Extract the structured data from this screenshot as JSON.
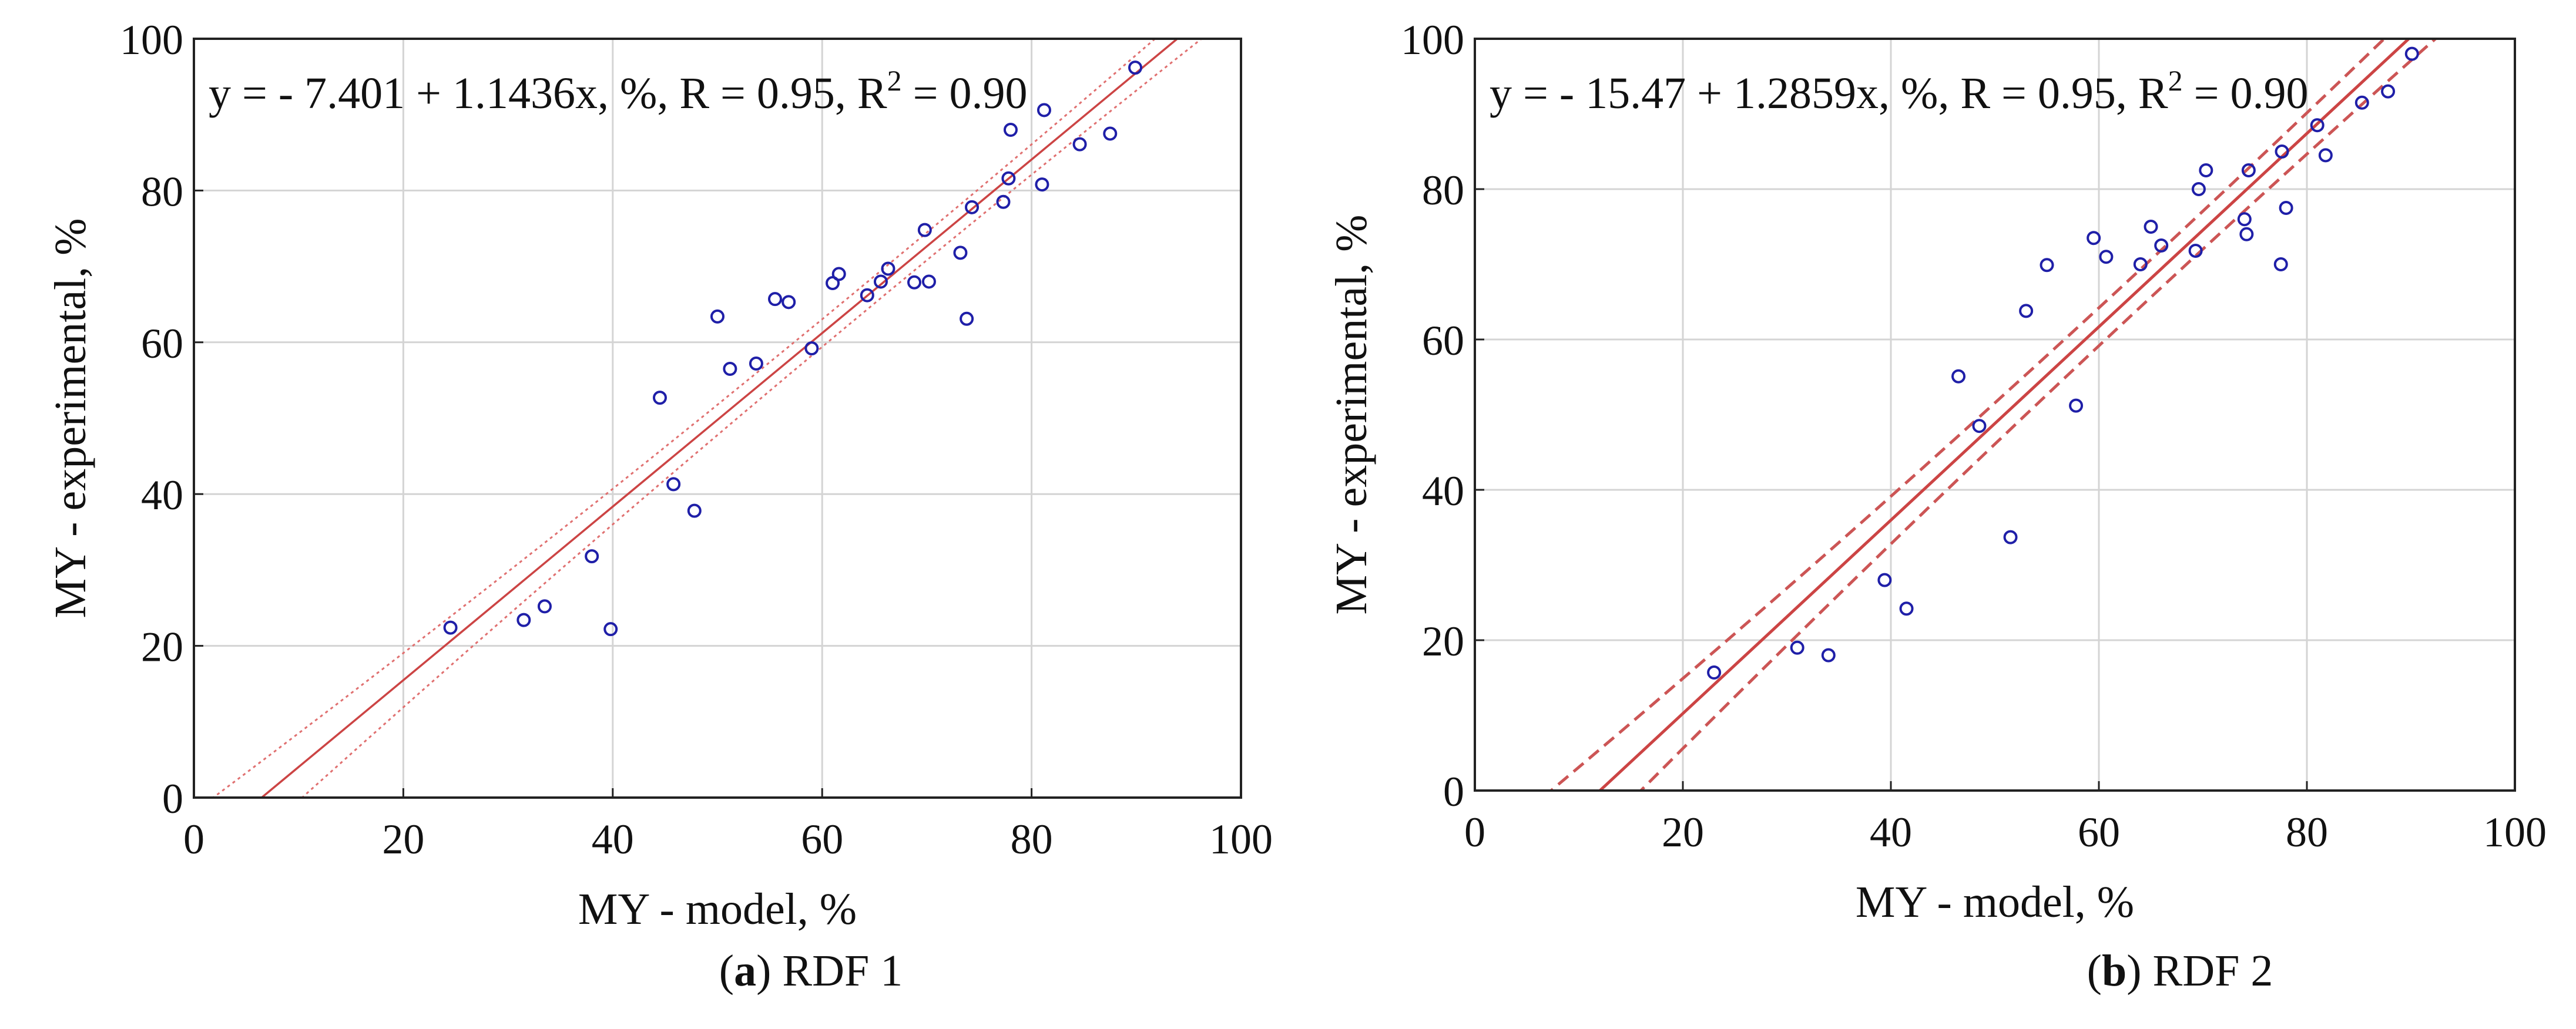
{
  "chart_data": [
    {
      "type": "scatter",
      "panel_label": "a",
      "caption": "RDF 1",
      "equation": "y = - 7.401 + 1.1436x, %, R = 0.95, R",
      "equation_sup": "2",
      "equation_tail": " = 0.90",
      "xlabel": "MY - model, %",
      "ylabel": "MY - experimental, %",
      "xlim": [
        0,
        100
      ],
      "ylim": [
        0,
        100
      ],
      "xticks": [
        0,
        20,
        40,
        60,
        80,
        100
      ],
      "yticks": [
        0,
        20,
        40,
        60,
        80,
        100
      ],
      "grid": true,
      "fit": {
        "intercept": -7.401,
        "slope": 1.1436
      },
      "band_style": "dotted",
      "band_half_width": [
        5.5,
        1.8
      ],
      "points": {
        "x": [
          24.5,
          31.5,
          33.5,
          38,
          39.8,
          44.5,
          45.8,
          47.8,
          50,
          51.2,
          53.7,
          55.5,
          56.8,
          59,
          61,
          61.6,
          64.3,
          65.6,
          66.3,
          68.8,
          69.8,
          70.2,
          73.2,
          73.8,
          74.3,
          77.3,
          77.8,
          78,
          81,
          81.2,
          84.6,
          87.5,
          89.9
        ],
        "y": [
          22.4,
          23.4,
          25.2,
          31.8,
          22.2,
          52.7,
          41.3,
          37.8,
          63.4,
          56.5,
          57.2,
          65.7,
          65.3,
          59.2,
          67.8,
          69,
          66.2,
          68,
          69.7,
          67.9,
          74.8,
          68,
          71.8,
          63.1,
          77.8,
          78.5,
          81.6,
          88,
          80.8,
          90.6,
          86.1,
          87.5,
          96.2
        ]
      },
      "colors": {
        "points": "#1f1fa8",
        "fit": "#cc4444",
        "band": "#e07070",
        "grid": "#d4d4d4"
      }
    },
    {
      "type": "scatter",
      "panel_label": "b",
      "caption": "RDF 2",
      "equation": "y = - 15.47 + 1.2859x, %, R = 0.95, R",
      "equation_sup": "2",
      "equation_tail": " = 0.90",
      "xlabel": "MY - model, %",
      "ylabel": "MY - experimental, %",
      "xlim": [
        0,
        100
      ],
      "ylim": [
        0,
        100
      ],
      "xticks": [
        0,
        20,
        40,
        60,
        80,
        100
      ],
      "yticks": [
        0,
        20,
        40,
        60,
        80,
        100
      ],
      "grid": true,
      "fit": {
        "intercept": -15.47,
        "slope": 1.2859
      },
      "band_style": "dashed",
      "band_half_width": [
        7.0,
        2.5
      ],
      "points": {
        "x": [
          23,
          31,
          34,
          39.4,
          41.5,
          46.5,
          48.5,
          51.5,
          53,
          55,
          57.8,
          59.5,
          60.7,
          64,
          65,
          66,
          69.3,
          69.6,
          70.3,
          74,
          74.2,
          74.4,
          77.5,
          77.6,
          78,
          81,
          81.8,
          85.3,
          87.8,
          90.1
        ],
        "y": [
          15.7,
          19,
          18,
          28,
          24.2,
          55.1,
          48.5,
          33.7,
          63.8,
          69.9,
          51.2,
          73.5,
          71,
          70,
          75,
          72.5,
          71.8,
          80,
          82.5,
          76,
          74,
          82.5,
          70,
          85,
          77.5,
          88.5,
          84.5,
          91.5,
          93,
          98
        ]
      },
      "colors": {
        "points": "#1f1fa8",
        "fit": "#cc4444",
        "band": "#cc5555",
        "grid": "#d4d4d4"
      }
    }
  ]
}
